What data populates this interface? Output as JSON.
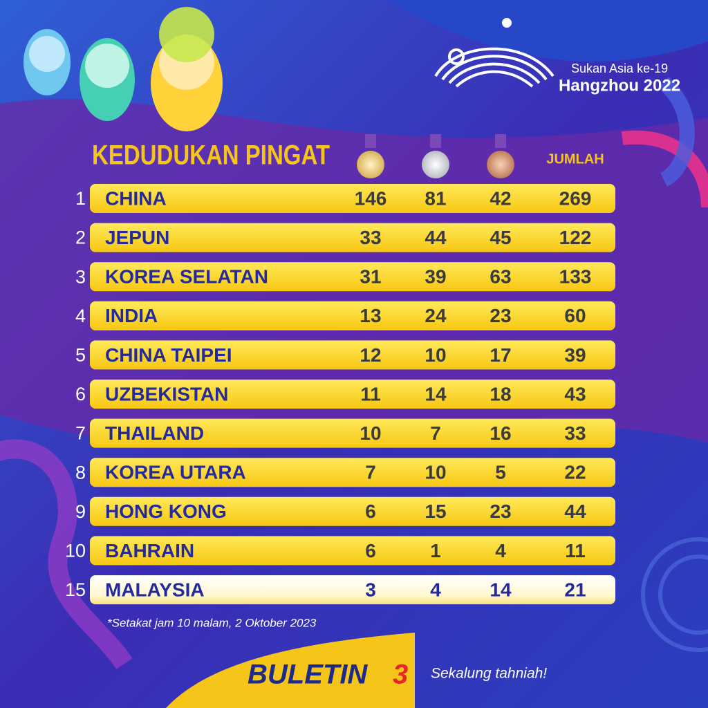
{
  "header": {
    "event": "Sukan Asia ke-19",
    "city": "Hangzhou 2022"
  },
  "title": "KEDUDUKAN PINGAT",
  "total_header": "JUMLAH",
  "table": {
    "rows": [
      [
        "1",
        "CHINA",
        "146",
        "81",
        "42",
        "269"
      ],
      [
        "2",
        "JEPUN",
        "33",
        "44",
        "45",
        "122"
      ],
      [
        "3",
        "KOREA SELATAN",
        "31",
        "39",
        "63",
        "133"
      ],
      [
        "4",
        "INDIA",
        "13",
        "24",
        "23",
        "60"
      ],
      [
        "5",
        "CHINA TAIPEI",
        "12",
        "10",
        "17",
        "39"
      ],
      [
        "6",
        "UZBEKISTAN",
        "11",
        "14",
        "18",
        "43"
      ],
      [
        "7",
        "THAILAND",
        "10",
        "7",
        "16",
        "33"
      ],
      [
        "8",
        "KOREA UTARA",
        "7",
        "10",
        "5",
        "22"
      ],
      [
        "9",
        "HONG KONG",
        "6",
        "15",
        "23",
        "44"
      ],
      [
        "10",
        "BAHRAIN",
        "6",
        "1",
        "4",
        "11"
      ],
      [
        "15",
        "MALAYSIA",
        "3",
        "4",
        "14",
        "21"
      ]
    ]
  },
  "footnote": "*Setakat jam 10 malam, 2 Oktober 2023",
  "brand": {
    "name": "BULETIN",
    "mark": "3"
  },
  "tagline": "Sekalung tahniah!"
}
